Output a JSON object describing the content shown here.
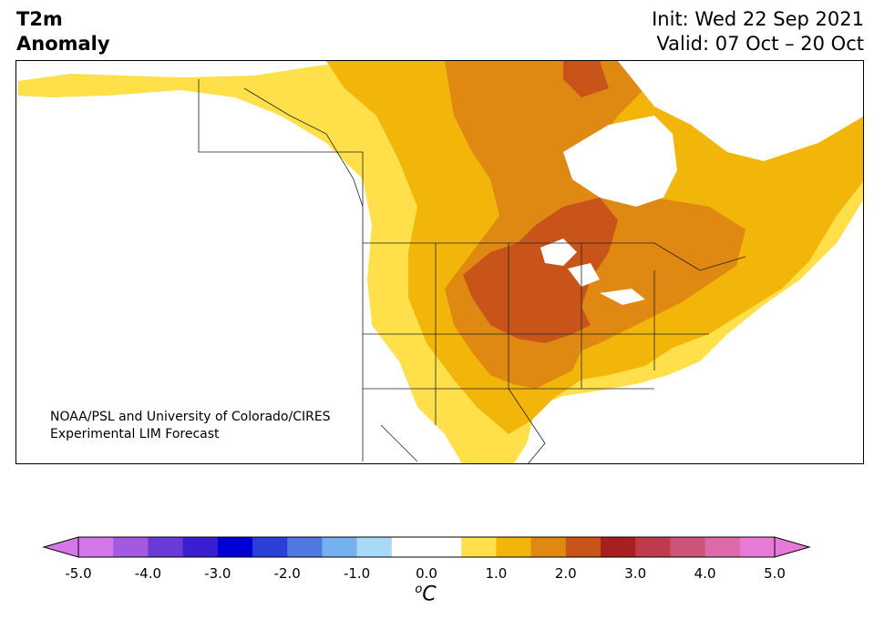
{
  "header": {
    "title_line1": "T2m",
    "title_line2": "Anomaly",
    "init": "Init: Wed 22 Sep 2021",
    "valid": "Valid: 07 Oct – 20 Oct"
  },
  "credit": {
    "line1": "NOAA/PSL and University of Colorado/CIRES",
    "line2": "Experimental LIM Forecast"
  },
  "colorbar": {
    "unit_main": "C",
    "unit_sup": "o",
    "ticks": [
      "-5.0",
      "-4.0",
      "-3.0",
      "-2.0",
      "-1.0",
      "0.0",
      "1.0",
      "2.0",
      "3.0",
      "4.0",
      "5.0"
    ],
    "colors": [
      "#d477e8",
      "#a45ae0",
      "#6a3ad6",
      "#3a1fd0",
      "#0000d6",
      "#2a3fd8",
      "#4f79e0",
      "#76b1ef",
      "#a8daf8",
      "#ffffff",
      "#ffffff",
      "#ffe04a",
      "#f2b50a",
      "#df8812",
      "#c8541a",
      "#a81f1f",
      "#bf3a4a",
      "#cd5478",
      "#dc6aa8",
      "#e77ad6"
    ],
    "under_color": "#d477e8",
    "over_color": "#e77ad6"
  },
  "map": {
    "region": "North America",
    "field": "2m temperature anomaly",
    "levels": [
      {
        "color": "#ffe04a",
        "range": "0.5 to 1.0"
      },
      {
        "color": "#f2b50a",
        "range": "1.0 to 1.5"
      },
      {
        "color": "#df8812",
        "range": "1.5 to 2.0"
      },
      {
        "color": "#c8541a",
        "range": "2.0 to 2.5"
      }
    ]
  }
}
